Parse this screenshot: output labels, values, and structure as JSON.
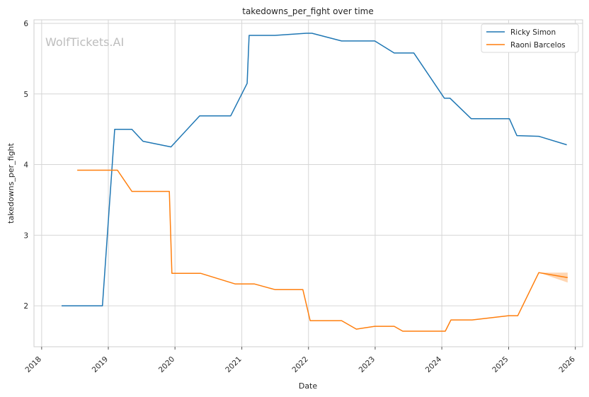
{
  "chart_data": {
    "type": "line",
    "title": "takedowns_per_fight over time",
    "xlabel": "Date",
    "ylabel": "takedowns_per_fight",
    "watermark": "WolfTickets.AI",
    "xlim": [
      "2017-11-20",
      "2026-02-10"
    ],
    "ylim": [
      1.42,
      6.05
    ],
    "x_ticks": [
      "2018",
      "2019",
      "2020",
      "2021",
      "2022",
      "2023",
      "2024",
      "2025",
      "2026"
    ],
    "y_ticks": [
      2,
      3,
      4,
      5,
      6
    ],
    "grid": true,
    "legend_position": "top-right",
    "series": [
      {
        "name": "Ricky Simon",
        "color": "#1f77b4",
        "points": [
          [
            "2018-04-20",
            2.0
          ],
          [
            "2018-11-30",
            2.0
          ],
          [
            "2019-02-05",
            4.5
          ],
          [
            "2019-05-10",
            4.5
          ],
          [
            "2019-07-10",
            4.33
          ],
          [
            "2019-12-10",
            4.25
          ],
          [
            "2020-05-15",
            4.69
          ],
          [
            "2020-11-01",
            4.69
          ],
          [
            "2021-01-30",
            5.15
          ],
          [
            "2021-02-10",
            5.83
          ],
          [
            "2021-07-01",
            5.83
          ],
          [
            "2021-12-20",
            5.86
          ],
          [
            "2022-01-20",
            5.86
          ],
          [
            "2022-07-01",
            5.75
          ],
          [
            "2022-12-30",
            5.75
          ],
          [
            "2023-04-15",
            5.58
          ],
          [
            "2023-08-01",
            5.58
          ],
          [
            "2024-01-15",
            4.94
          ],
          [
            "2024-02-15",
            4.94
          ],
          [
            "2024-06-10",
            4.65
          ],
          [
            "2025-01-05",
            4.65
          ],
          [
            "2025-02-15",
            4.41
          ],
          [
            "2025-06-15",
            4.4
          ],
          [
            "2025-11-15",
            4.28
          ]
        ]
      },
      {
        "name": "Raoni Barcelos",
        "color": "#ff7f0e",
        "band_color": "#ffd2aa",
        "points": [
          [
            "2018-07-15",
            3.92
          ],
          [
            "2019-01-30",
            3.92
          ],
          [
            "2019-02-20",
            3.92
          ],
          [
            "2019-05-10",
            3.62
          ],
          [
            "2019-12-01",
            3.62
          ],
          [
            "2019-12-15",
            2.46
          ],
          [
            "2020-05-20",
            2.46
          ],
          [
            "2020-11-25",
            2.31
          ],
          [
            "2021-03-10",
            2.31
          ],
          [
            "2021-07-01",
            2.23
          ],
          [
            "2021-12-01",
            2.23
          ],
          [
            "2022-01-10",
            1.79
          ],
          [
            "2022-07-01",
            1.79
          ],
          [
            "2022-09-20",
            1.67
          ],
          [
            "2022-12-30",
            1.71
          ],
          [
            "2023-04-15",
            1.71
          ],
          [
            "2023-06-01",
            1.64
          ],
          [
            "2024-01-20",
            1.64
          ],
          [
            "2024-02-20",
            1.8
          ],
          [
            "2024-06-15",
            1.8
          ],
          [
            "2025-01-01",
            1.86
          ],
          [
            "2025-02-20",
            1.86
          ],
          [
            "2025-06-15",
            2.47
          ],
          [
            "2025-11-20",
            2.4
          ]
        ],
        "band": [
          [
            "2025-06-15",
            2.47,
            2.47
          ],
          [
            "2025-11-20",
            2.33,
            2.47
          ]
        ]
      }
    ]
  }
}
